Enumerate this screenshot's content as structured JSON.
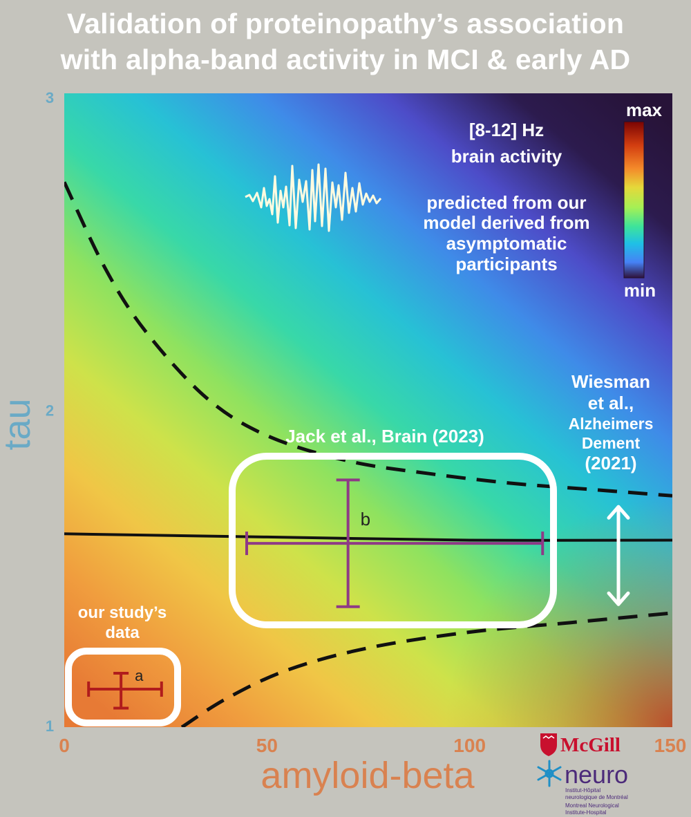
{
  "title_lines": [
    "Validation of proteinopathy’s association",
    "with alpha-band activity in MCI & early AD"
  ],
  "colors": {
    "background": "#c5c4bd",
    "x_axis_text": "#d98250",
    "y_axis_text": "#6aaac6",
    "error_bar": "#8e3a86",
    "study_bar": "#b01c1c"
  },
  "chart_data": {
    "type": "heatmap",
    "xlabel": "amyloid-beta",
    "ylabel": "tau",
    "xlim": [
      0,
      150
    ],
    "ylim": [
      1,
      3
    ],
    "x_ticks": [
      "0",
      "50",
      "100",
      "150"
    ],
    "y_ticks": [
      "1",
      "2",
      "3"
    ],
    "colorbar": {
      "max_label": "max",
      "min_label": "min"
    },
    "annotation": {
      "heading": [
        "[8-12] Hz",
        "brain activity"
      ],
      "body": [
        "predicted from our",
        "model derived from",
        "asymptomatic",
        "participants"
      ]
    },
    "model_fit": {
      "center": [
        [
          0,
          1.61
        ],
        [
          50,
          1.6
        ],
        [
          100,
          1.59
        ],
        [
          150,
          1.59
        ]
      ],
      "upper_bound": [
        [
          0,
          2.72
        ],
        [
          10,
          2.45
        ],
        [
          20,
          2.25
        ],
        [
          35,
          2.04
        ],
        [
          50,
          1.92
        ],
        [
          70,
          1.84
        ],
        [
          90,
          1.8
        ],
        [
          110,
          1.77
        ],
        [
          130,
          1.75
        ],
        [
          150,
          1.73
        ]
      ],
      "lower_bound": [
        [
          29,
          1.0
        ],
        [
          40,
          1.09
        ],
        [
          55,
          1.18
        ],
        [
          75,
          1.25
        ],
        [
          100,
          1.3
        ],
        [
          125,
          1.33
        ],
        [
          150,
          1.36
        ]
      ]
    },
    "studies": [
      {
        "name": "our study’s data",
        "label_lines": [
          "our study’s",
          "data"
        ],
        "marker": "a",
        "x": 14,
        "x_range": [
          6,
          24
        ],
        "y": 1.12,
        "y_range": [
          1.06,
          1.17
        ]
      },
      {
        "name": "Jack et al., Brain (2023)",
        "label_lines": [
          "Jack et al., Brain (2023)"
        ],
        "marker": "b",
        "x": 70,
        "x_range": [
          45,
          118
        ],
        "y": 1.58,
        "y_range": [
          1.38,
          1.78
        ]
      }
    ],
    "range_note": {
      "label_lines": [
        "Wiesman",
        "et al.,",
        "Alzheimers",
        "Dement",
        "(2021)"
      ]
    }
  },
  "logos": {
    "mcgill": "McGill",
    "neuro": "neuro",
    "neuro_lines": [
      "Institut-Hôpital",
      "neurologique de Montréal",
      "Montreal Neurological",
      "Institute-Hospital"
    ],
    "icons": [
      "shield-icon",
      "snowflake-icon"
    ]
  }
}
